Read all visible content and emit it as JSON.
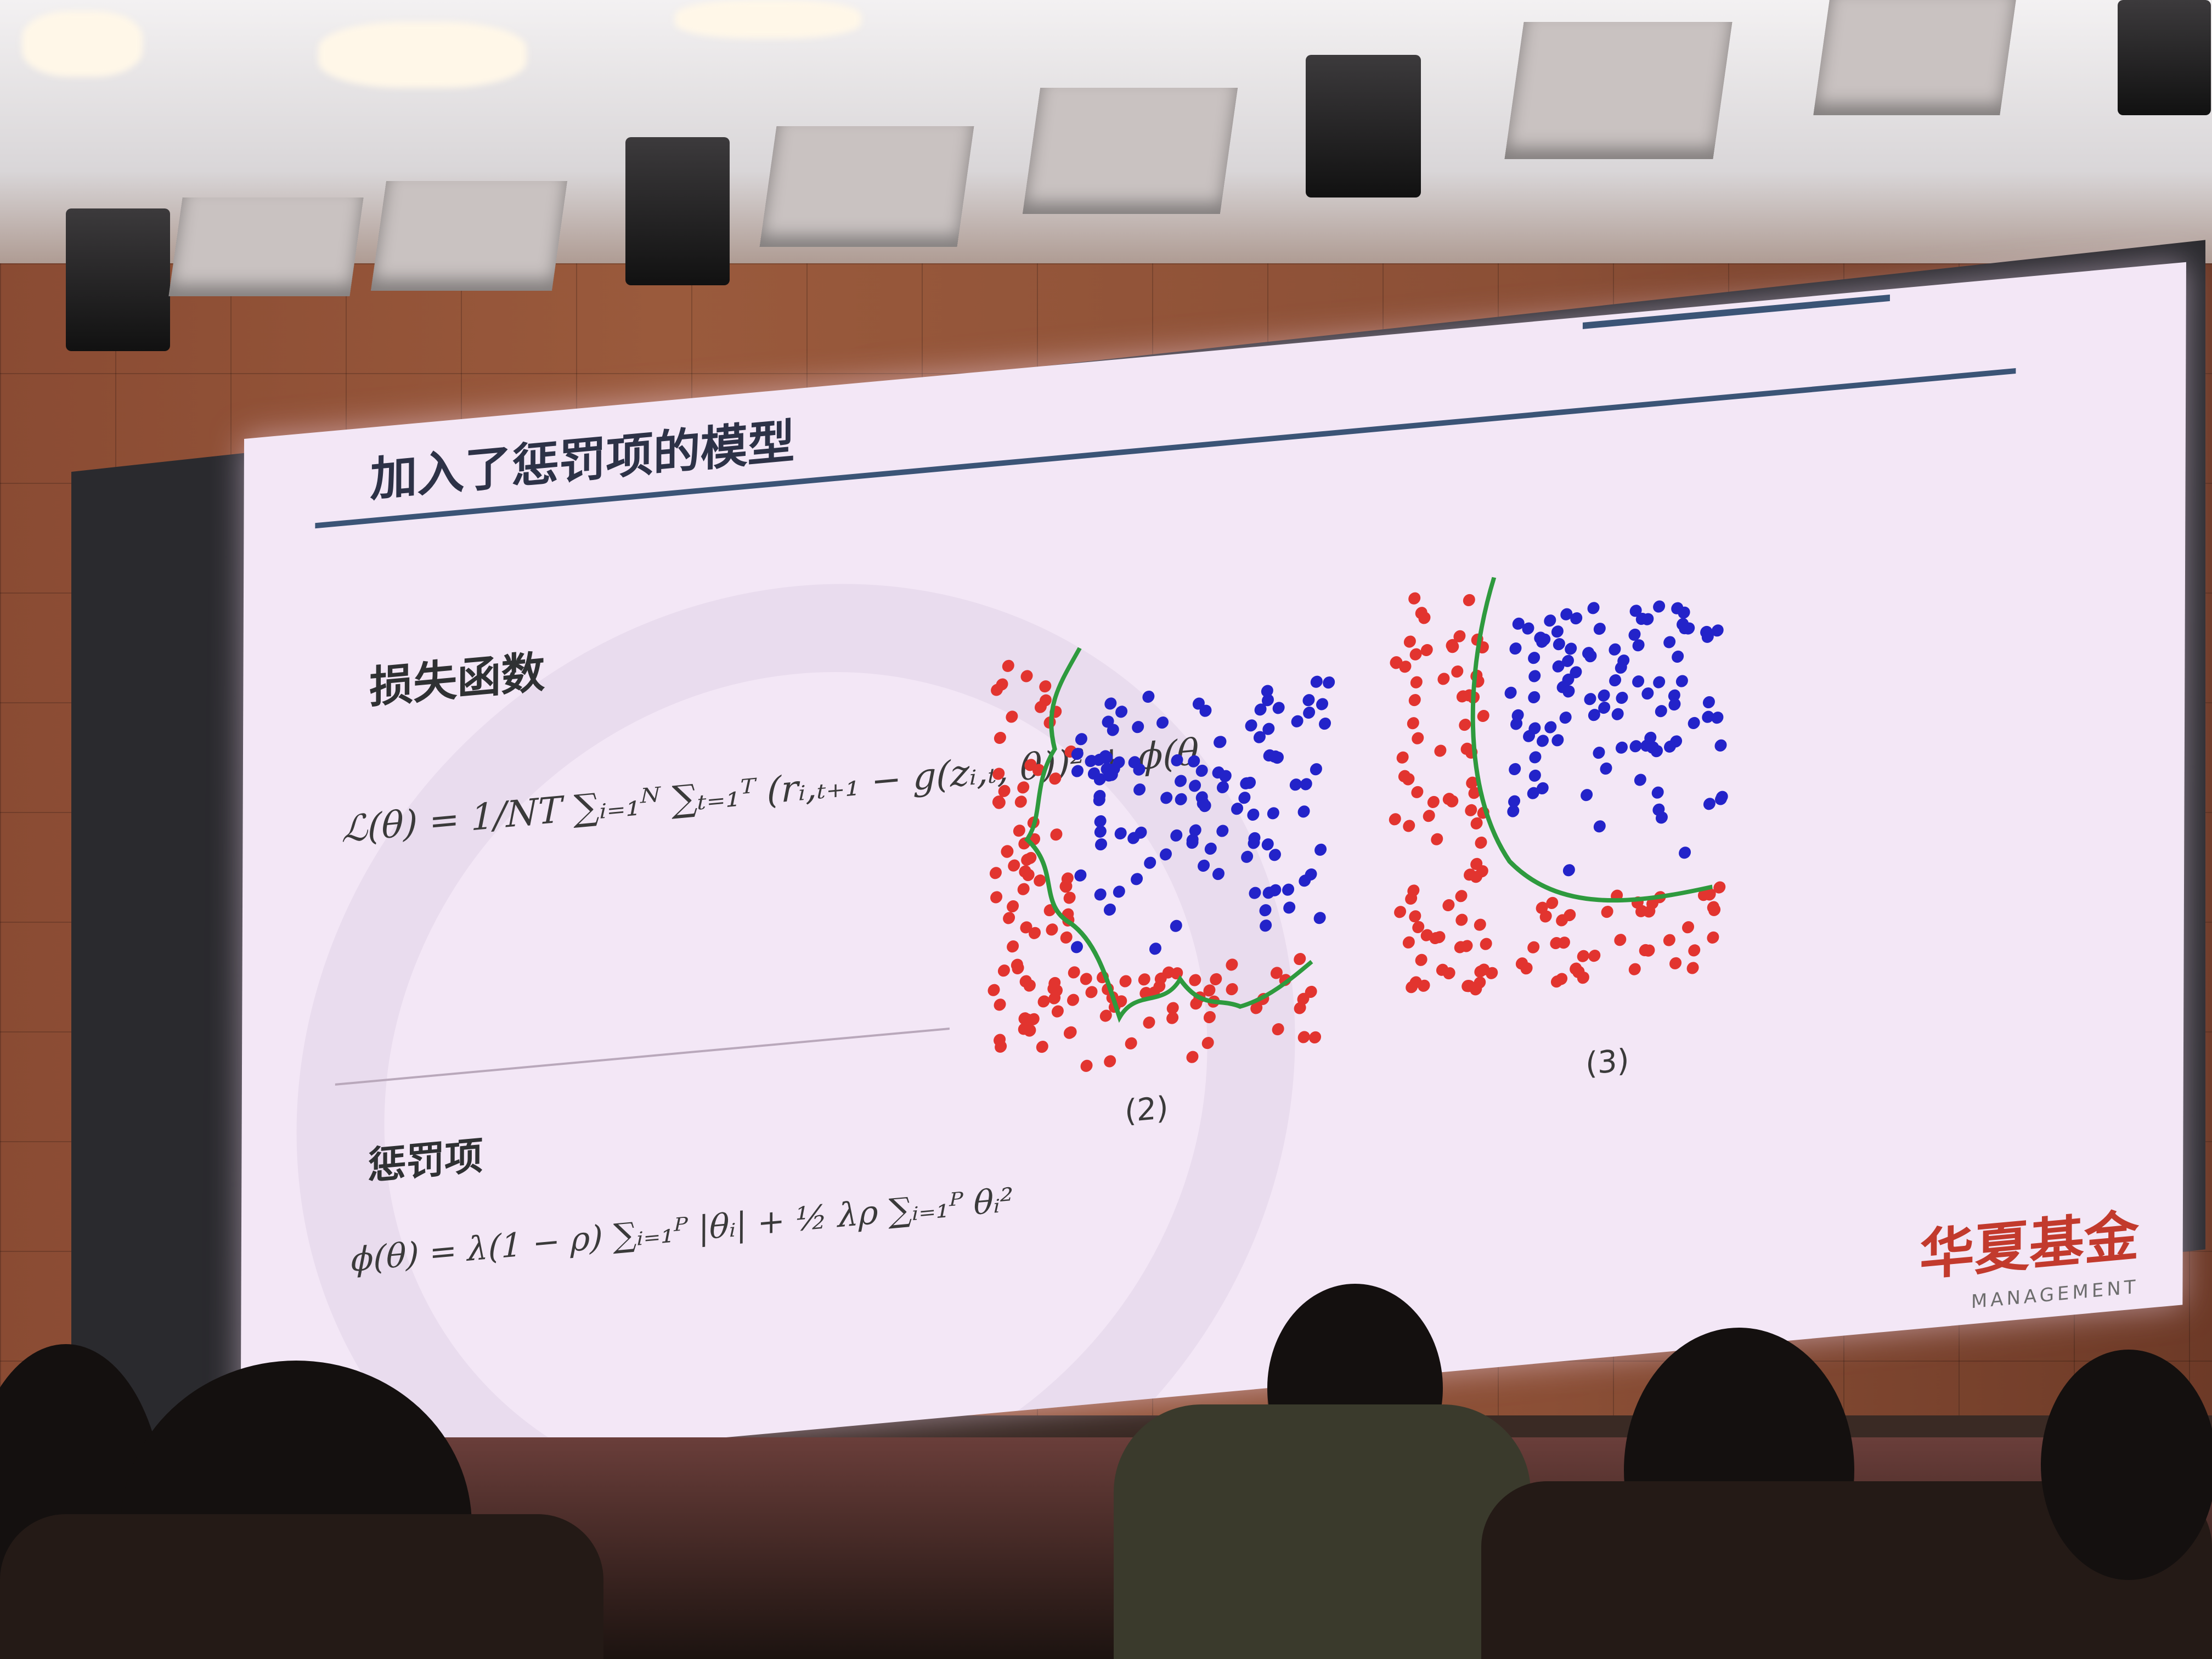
{
  "slide": {
    "title": "加入了惩罚项的模型",
    "section_loss": "损失函数",
    "loss_formula": "ℒ(θ) = 1/NT ∑ᵢ₌₁ᴺ ∑ₜ₌₁ᵀ (rᵢ,ₜ₊₁ − g(zᵢ,ₜ, θ))² + ϕ(θ",
    "section_penalty": "惩罚项",
    "penalty_formula": "ϕ(θ) = λ(1 − ρ) ∑ᵢ₌₁ᴾ |θᵢ| + ½ λρ ∑ᵢ₌₁ᴾ θᵢ²",
    "figure_labels": [
      "(2)",
      "(3)"
    ],
    "logo_text": "华夏基金",
    "logo_sub": "MANAGEMENT"
  },
  "colors": {
    "slide_bg": "#f3e7f6",
    "title_bar": "#3b5476",
    "class_red": "#e2342f",
    "class_blue": "#2323c9",
    "boundary": "#2e9a3e",
    "logo": "#c23a2d"
  }
}
